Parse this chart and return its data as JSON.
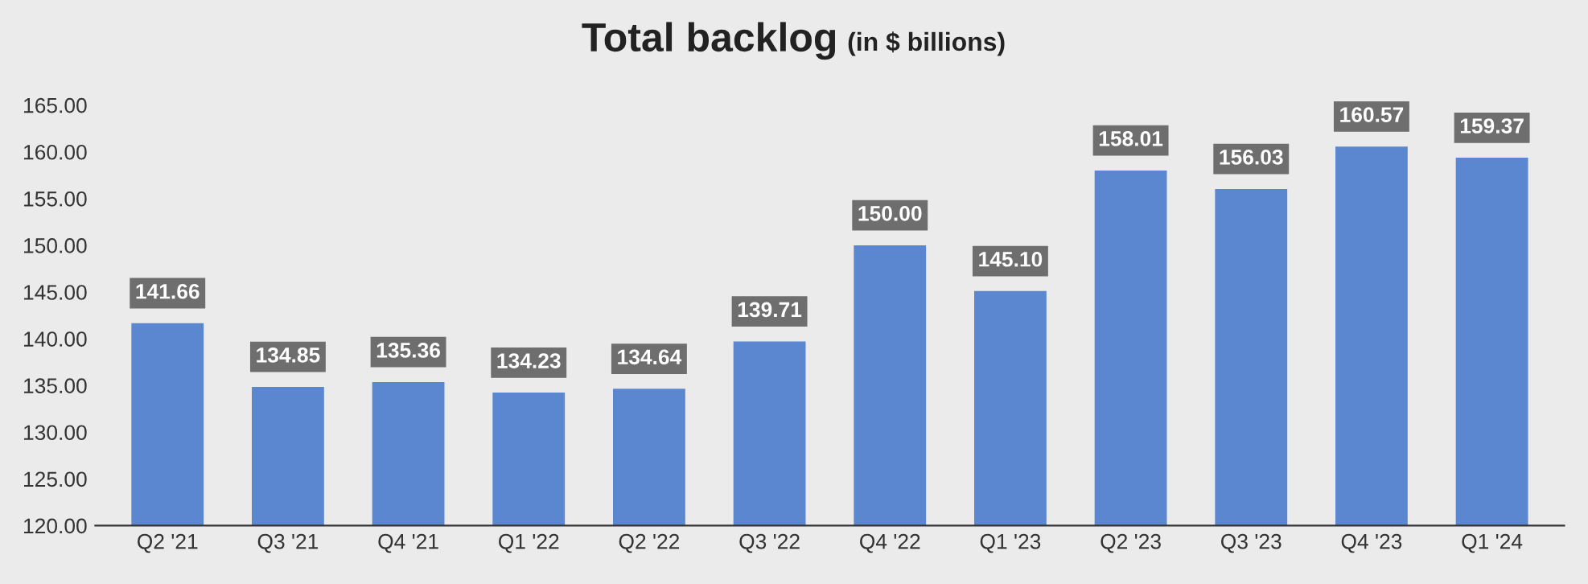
{
  "chart_data": {
    "type": "bar",
    "title": "Total backlog",
    "subtitle": "(in $ billions)",
    "categories": [
      "Q2 '21",
      "Q3 '21",
      "Q4 '21",
      "Q1 '22",
      "Q2 '22",
      "Q3 '22",
      "Q4 '22",
      "Q1 '23",
      "Q2 '23",
      "Q3 '23",
      "Q4 '23",
      "Q1 '24"
    ],
    "values": [
      141.66,
      134.85,
      135.36,
      134.23,
      134.64,
      139.71,
      150.0,
      145.1,
      158.01,
      156.03,
      160.57,
      159.37
    ],
    "value_labels": [
      "141.66",
      "134.85",
      "135.36",
      "134.23",
      "134.64",
      "139.71",
      "150.00",
      "145.10",
      "158.01",
      "156.03",
      "160.57",
      "159.37"
    ],
    "color": "#5b86d0",
    "ylim": [
      120,
      165
    ],
    "yticks": [
      {
        "value": 120,
        "label": "120.00"
      },
      {
        "value": 125,
        "label": "125.00"
      },
      {
        "value": 130,
        "label": "130.00"
      },
      {
        "value": 135,
        "label": "135.00"
      },
      {
        "value": 140,
        "label": "140.00"
      },
      {
        "value": 145,
        "label": "145.00"
      },
      {
        "value": 150,
        "label": "150.00"
      },
      {
        "value": 155,
        "label": "155.00"
      },
      {
        "value": 160,
        "label": "160.00"
      },
      {
        "value": 165,
        "label": "165.00"
      }
    ],
    "grid": false
  }
}
